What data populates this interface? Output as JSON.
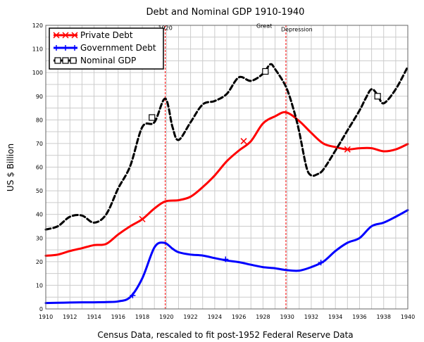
{
  "chart_data": {
    "type": "line",
    "title": "Debt and Nominal GDP 1910-1940",
    "xlabel": "Census Data, rescaled to fit post-1952 Federal Reserve Data",
    "ylabel": "US $ Billion",
    "xlim": [
      1910,
      1940
    ],
    "ylim": [
      0,
      120
    ],
    "xticks": [
      "1910",
      "1912",
      "1914",
      "1916",
      "1918",
      "1920",
      "1922",
      "1924",
      "1926",
      "1928",
      "1930",
      "1932",
      "1934",
      "1936",
      "1938",
      "1940"
    ],
    "yticks": [
      "0",
      "10",
      "20",
      "30",
      "40",
      "50",
      "60",
      "70",
      "80",
      "90",
      "100",
      "110",
      "120"
    ],
    "grid": true,
    "legend_position": "top-left",
    "annotations": [
      {
        "text": "1920",
        "x": 1919.9,
        "y": 118
      },
      {
        "text": "Great",
        "x": 1928.1,
        "y": 119
      },
      {
        "text": "Depression",
        "x": 1930.8,
        "y": 117.5
      }
    ],
    "vlines": [
      1919.9,
      1929.9
    ],
    "series": [
      {
        "name": "Private Debt",
        "color": "#ff0000",
        "marker": "x",
        "x": [
          1910,
          1911,
          1912,
          1913,
          1914,
          1915,
          1916,
          1917,
          1918,
          1919,
          1919.9,
          1921,
          1922,
          1923,
          1924,
          1925,
          1926,
          1927,
          1928,
          1929,
          1929.9,
          1931,
          1932,
          1933,
          1934,
          1935,
          1936,
          1937,
          1938,
          1939,
          1940
        ],
        "y": [
          22.5,
          23,
          24.5,
          25.7,
          27,
          27.5,
          31.5,
          35,
          38,
          42.5,
          45.5,
          46,
          47.5,
          51.5,
          56.5,
          62.5,
          67,
          71,
          78.5,
          81.5,
          83.2,
          79.5,
          74.5,
          70,
          68.5,
          67.5,
          68,
          68,
          66.7,
          67.5,
          69.8
        ],
        "marker_x": [
          1918,
          1926.4,
          1935
        ],
        "marker_y": [
          38,
          71,
          67.5
        ]
      },
      {
        "name": "Government Debt",
        "color": "#0000ff",
        "marker": "+",
        "x": [
          1910,
          1911,
          1912,
          1913,
          1914,
          1915,
          1916,
          1917,
          1918,
          1919,
          1919.8,
          1920.5,
          1921,
          1922,
          1923,
          1924,
          1925,
          1926,
          1927,
          1928,
          1929,
          1930,
          1931,
          1932,
          1933,
          1934,
          1935,
          1936,
          1937,
          1938,
          1939,
          1940
        ],
        "y": [
          2.5,
          2.6,
          2.7,
          2.8,
          2.8,
          2.9,
          3.2,
          5,
          13,
          26,
          28,
          25.5,
          24,
          23,
          22.6,
          21.5,
          20.5,
          19.8,
          18.7,
          17.7,
          17.2,
          16.4,
          16.2,
          17.7,
          20,
          24.5,
          28,
          30,
          35,
          36.5,
          39,
          41.8
        ],
        "marker_x": [
          1917.2,
          1924.9,
          1932.8
        ],
        "marker_y": [
          5.7,
          21,
          19.6
        ]
      },
      {
        "name": "Nominal GDP",
        "color": "#000000",
        "marker": "square",
        "x": [
          1910,
          1911,
          1912,
          1913,
          1914,
          1915,
          1916,
          1917,
          1918,
          1919,
          1919.9,
          1920.5,
          1921,
          1922,
          1923,
          1924,
          1925,
          1926,
          1927,
          1928,
          1928.6,
          1929,
          1929.9,
          1930.5,
          1931,
          1931.6,
          1932,
          1932.5,
          1933,
          1934,
          1935,
          1936,
          1936.5,
          1937,
          1937.5,
          1938,
          1939,
          1940
        ],
        "y": [
          33.6,
          35,
          39,
          39.5,
          36.5,
          40,
          51,
          60.5,
          77,
          79,
          89,
          77,
          71.5,
          79,
          86.5,
          88,
          91,
          98,
          96.5,
          99.5,
          103.5,
          101.5,
          94,
          85,
          75,
          60,
          56.5,
          57,
          59,
          67,
          75.5,
          84,
          89,
          93,
          90.5,
          87,
          93,
          102.5
        ],
        "marker_x": [
          1918.8,
          1928.2,
          1937.5
        ],
        "marker_y": [
          81,
          100.5,
          90
        ]
      }
    ]
  }
}
